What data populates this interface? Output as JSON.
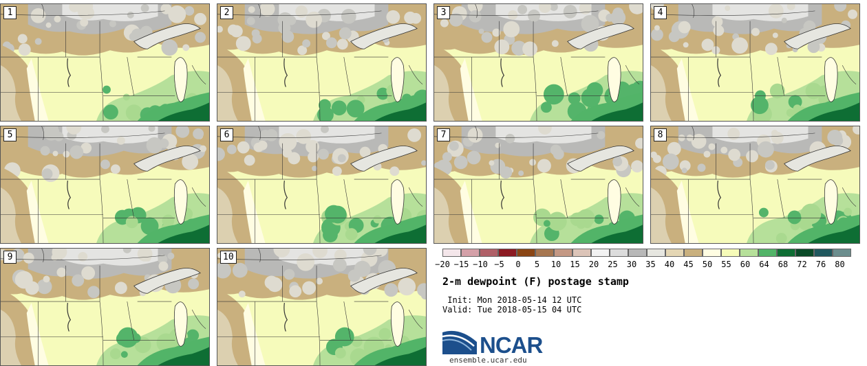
{
  "panels": [
    {
      "label": "1"
    },
    {
      "label": "2"
    },
    {
      "label": "3"
    },
    {
      "label": "4"
    },
    {
      "label": "5"
    },
    {
      "label": "6"
    },
    {
      "label": "7"
    },
    {
      "label": "8"
    },
    {
      "label": "9"
    },
    {
      "label": "10"
    }
  ],
  "colorbar": {
    "colors": [
      "#f4e6ea",
      "#d4a0a8",
      "#b06068",
      "#8c1a22",
      "#8a4514",
      "#a67650",
      "#c49884",
      "#dcc4b8",
      "#f2f2f2",
      "#dcdcdc",
      "#b8b8b8",
      "#e6e6e0",
      "#e4d6b4",
      "#c9b07e",
      "#fffde2",
      "#f6fbb8",
      "#b6e09a",
      "#52b468",
      "#0e6e34",
      "#0a4a28",
      "#20585e",
      "#6c8e8e"
    ],
    "ticks": [
      "−20",
      "−15",
      "−10",
      "−5",
      "0",
      "5",
      "10",
      "15",
      "20",
      "25",
      "30",
      "35",
      "40",
      "45",
      "50",
      "55",
      "60",
      "64",
      "68",
      "72",
      "76",
      "80"
    ]
  },
  "title": "2-m dewpoint (F) postage stamp",
  "init": " Init: Mon 2018-05-14 12 UTC",
  "valid": "Valid: Tue 2018-05-15 04 UTC",
  "logo": {
    "text": "NCAR",
    "url": "ensemble.ucar.edu"
  }
}
